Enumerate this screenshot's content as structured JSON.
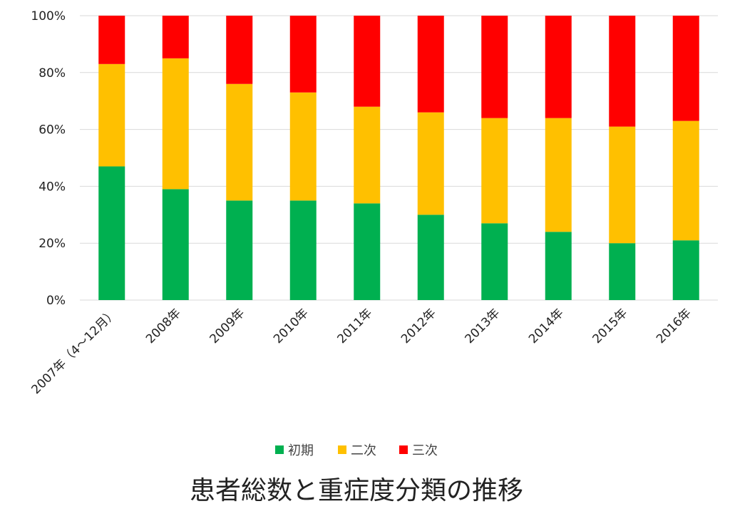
{
  "chart_data": {
    "type": "bar",
    "stacked": true,
    "percent": true,
    "title": "患者総数と重症度分類の推移",
    "xlabel": "",
    "ylabel": "",
    "ylim": [
      0,
      100
    ],
    "yticks": [
      "0%",
      "20%",
      "40%",
      "60%",
      "80%",
      "100%"
    ],
    "grid": true,
    "legend_position": "bottom",
    "categories": [
      "2007年（4～12月）",
      "2008年",
      "2009年",
      "2010年",
      "2011年",
      "2012年",
      "2013年",
      "2014年",
      "2015年",
      "2016年"
    ],
    "series": [
      {
        "name": "初期",
        "color": "#00b050",
        "values": [
          47,
          39,
          35,
          35,
          34,
          30,
          27,
          24,
          20,
          21
        ]
      },
      {
        "name": "二次",
        "color": "#ffc000",
        "values": [
          36,
          46,
          41,
          38,
          34,
          36,
          37,
          40,
          41,
          42
        ]
      },
      {
        "name": "三次",
        "color": "#ff0000",
        "values": [
          17,
          15,
          24,
          27,
          32,
          34,
          36,
          36,
          39,
          37
        ]
      }
    ]
  },
  "colors": {
    "grid": "#d9d9d9",
    "text": "#222222"
  }
}
